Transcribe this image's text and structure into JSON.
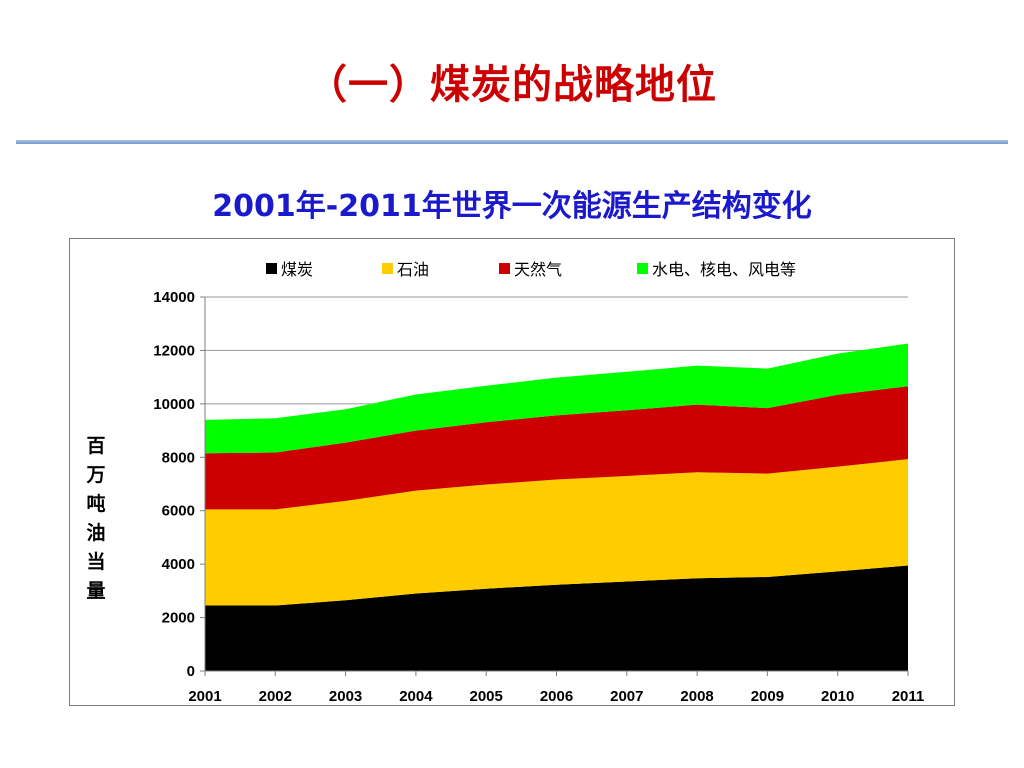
{
  "slide": {
    "title": "（一）煤炭的战略地位",
    "chart_heading": "2001年-2011年世界一次能源生产结构变化"
  },
  "colors": {
    "title": "#cc0000",
    "heading": "#1a1acc",
    "divider": "#6f98cc",
    "coal": "#000000",
    "oil": "#ffcc00",
    "gas": "#cc0000",
    "renewables": "#00ff00"
  },
  "chart_data": {
    "type": "area",
    "stacked": true,
    "title": "2001年-2011年世界一次能源生产结构变化",
    "ylabel": "百万吨油当量",
    "xlabel": "",
    "x": [
      "2001",
      "2002",
      "2003",
      "2004",
      "2005",
      "2006",
      "2007",
      "2008",
      "2009",
      "2010",
      "2011"
    ],
    "ylim": [
      0,
      14000
    ],
    "yticks": [
      "0",
      "2000",
      "4000",
      "6000",
      "8000",
      "10000",
      "12000",
      "14000"
    ],
    "grid": true,
    "legend_position": "top",
    "series": [
      {
        "name": "煤炭",
        "color": "#000000",
        "values": [
          2450,
          2450,
          2650,
          2900,
          3080,
          3230,
          3350,
          3470,
          3520,
          3730,
          3950
        ]
      },
      {
        "name": "石油",
        "color": "#ffcc00",
        "values": [
          3600,
          3600,
          3720,
          3850,
          3900,
          3940,
          3950,
          3970,
          3870,
          3920,
          3980
        ]
      },
      {
        "name": "天然气",
        "color": "#cc0000",
        "values": [
          2100,
          2130,
          2180,
          2250,
          2330,
          2400,
          2460,
          2530,
          2450,
          2690,
          2730
        ]
      },
      {
        "name": "水电、核电、风电等",
        "color": "#00ff00",
        "values": [
          1250,
          1280,
          1250,
          1350,
          1370,
          1410,
          1440,
          1460,
          1480,
          1540,
          1600
        ]
      }
    ]
  }
}
